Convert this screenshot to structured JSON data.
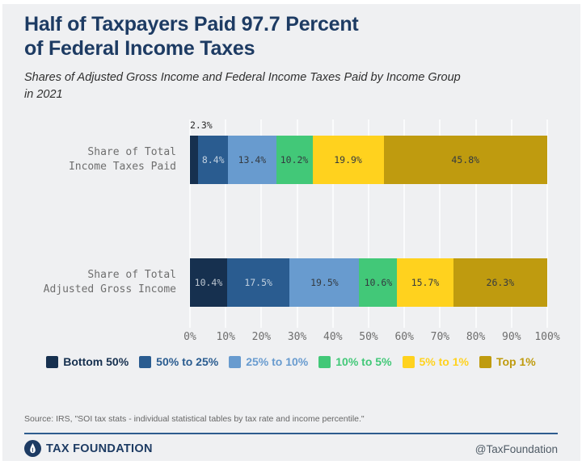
{
  "header": {
    "title_line1": "Half of Taxpayers Paid 97.7 Percent",
    "title_line2": "of Federal Income Taxes",
    "subtitle_line1": "Shares of Adjusted Gross Income and Federal Income Taxes Paid by Income Group",
    "subtitle_line2": "in 2021"
  },
  "chart_data": {
    "type": "bar",
    "orientation": "horizontal",
    "stacked": true,
    "title": "Half of Taxpayers Paid 97.7 Percent of Federal Income Taxes",
    "subtitle": "Shares of Adjusted Gross Income and Federal Income Taxes Paid by Income Group in 2021",
    "groups": [
      "Bottom 50%",
      "50% to 25%",
      "25% to 10%",
      "10% to 5%",
      "5% to 1%",
      "Top 1%"
    ],
    "colors": [
      "#16304F",
      "#2A5C90",
      "#689BCF",
      "#42C878",
      "#FFD21E",
      "#BF9B0F"
    ],
    "series": [
      {
        "name": "Share of Total Income Taxes Paid",
        "values": [
          2.3,
          8.4,
          13.4,
          10.2,
          19.9,
          45.8
        ]
      },
      {
        "name": "Share of Total Adjusted Gross Income",
        "values": [
          10.4,
          17.5,
          19.5,
          10.6,
          15.7,
          26.3
        ]
      }
    ],
    "category_labels": [
      [
        "Share of Total",
        "Income Taxes Paid"
      ],
      [
        "Share of Total",
        "Adjusted Gross Income"
      ]
    ],
    "outside_label": {
      "series": 0,
      "segment": 0,
      "text": "2.3%"
    },
    "x_ticks": [
      "0%",
      "10%",
      "20%",
      "30%",
      "40%",
      "50%",
      "60%",
      "70%",
      "80%",
      "90%",
      "100%"
    ],
    "xlim": [
      0,
      100
    ],
    "grid": true,
    "legend_position": "bottom"
  },
  "footer": {
    "source": "Source: IRS, \"SOI tax stats - individual statistical tables by tax rate and income percentile.\"",
    "brand": "TAX FOUNDATION",
    "handle": "@TaxFoundation"
  },
  "brand_colors": {
    "navy": "#1D3B63",
    "divider_blue": "#2E5C8E",
    "background": "#EFF0F2"
  }
}
